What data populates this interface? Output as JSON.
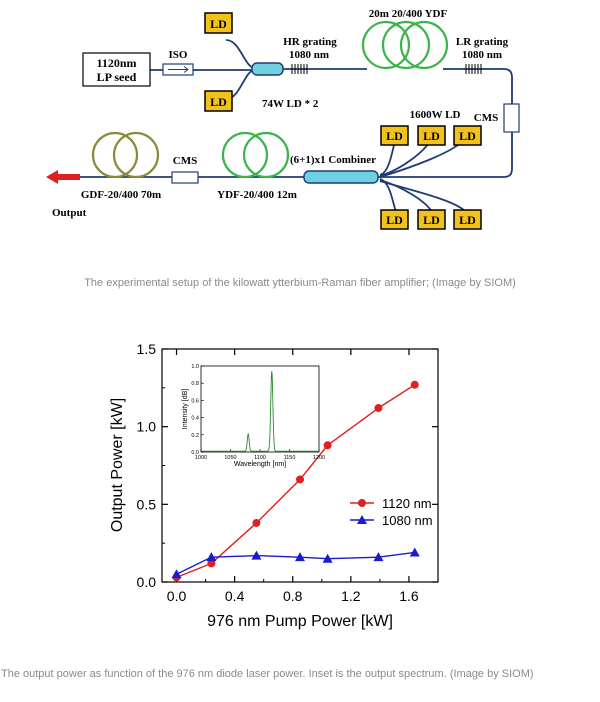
{
  "setup": {
    "ld_label": "LD",
    "seed_line1": "1120nm",
    "seed_line2": "LP seed",
    "isolator": "ISO",
    "hr_grating": "HR grating",
    "hr_wavelength": "1080 nm",
    "yb_fiber": "20m 20/400 YDF",
    "lr_grating": "LR grating",
    "lr_wavelength": "1080 nm",
    "pump_ld": "74W LD * 2",
    "cms": "CMS",
    "ld_1600w": "1600W LD",
    "combiner": "(6+1)x1 Combiner",
    "cms2": "CMS",
    "ydf_2": "YDF-20/400 12m",
    "gdf": "GDF-20/400 70m",
    "output": "Output",
    "colors": {
      "ld_fill": "#f2c21b",
      "coil_green": "#3cb44b",
      "coil_olive": "#8a8a3a",
      "fiber": "#1f3b73",
      "arrow": "#e02020",
      "coupler": "#6fd0e0"
    }
  },
  "captions": {
    "setup": "The experimental setup of the kilowatt ytterbium-Raman fiber amplifier; (Image by SIOM)",
    "chart": "The output power as function of the 976 nm diode laser power. Inset is the output spectrum. (Image by SIOM)"
  },
  "chart_data": {
    "type": "line",
    "xlabel": "976 nm Pump Power [kW]",
    "ylabel": "Output Power [kW]",
    "xlim": [
      -0.1,
      1.8
    ],
    "ylim": [
      0.0,
      1.5
    ],
    "xticks": [
      "0.0",
      "0.4",
      "0.8",
      "1.2",
      "1.6"
    ],
    "xtick_values": [
      0.0,
      0.4,
      0.8,
      1.2,
      1.6
    ],
    "yticks": [
      "0.0",
      "0.5",
      "1.0",
      "1.5"
    ],
    "ytick_values": [
      0.0,
      0.5,
      1.0,
      1.5
    ],
    "legend_position": "center-right",
    "series": [
      {
        "name": "1120 nm",
        "color": "#e02020",
        "marker": "circle",
        "x": [
          0.0,
          0.24,
          0.55,
          0.85,
          1.04,
          1.39,
          1.64
        ],
        "y": [
          0.03,
          0.12,
          0.38,
          0.66,
          0.88,
          1.12,
          1.27
        ]
      },
      {
        "name": "1080 nm",
        "color": "#1a1ad0",
        "marker": "triangle",
        "x": [
          0.0,
          0.24,
          0.55,
          0.85,
          1.04,
          1.39,
          1.64
        ],
        "y": [
          0.05,
          0.16,
          0.17,
          0.16,
          0.15,
          0.16,
          0.19
        ]
      }
    ],
    "inset": {
      "type": "line",
      "xlabel": "Wavelength [nm]",
      "ylabel": "Intensity [dB]",
      "xlim": [
        1000,
        1200
      ],
      "ylim": [
        0.0,
        1.0
      ],
      "xticks": [
        "1000",
        "1050",
        "1100",
        "1150",
        "1200"
      ],
      "xtick_values": [
        1000,
        1050,
        1100,
        1150,
        1200
      ],
      "yticks": [
        "0.0",
        "0.2",
        "0.4",
        "0.6",
        "0.8",
        "1.0"
      ],
      "ytick_values": [
        0.0,
        0.2,
        0.4,
        0.6,
        0.8,
        1.0
      ],
      "color": "#2a8a2a",
      "peaks": [
        {
          "center": 1080,
          "height": 0.2,
          "width": 1.6
        },
        {
          "center": 1120,
          "height": 0.93,
          "width": 1.8
        }
      ],
      "baseline": 0.01
    }
  }
}
